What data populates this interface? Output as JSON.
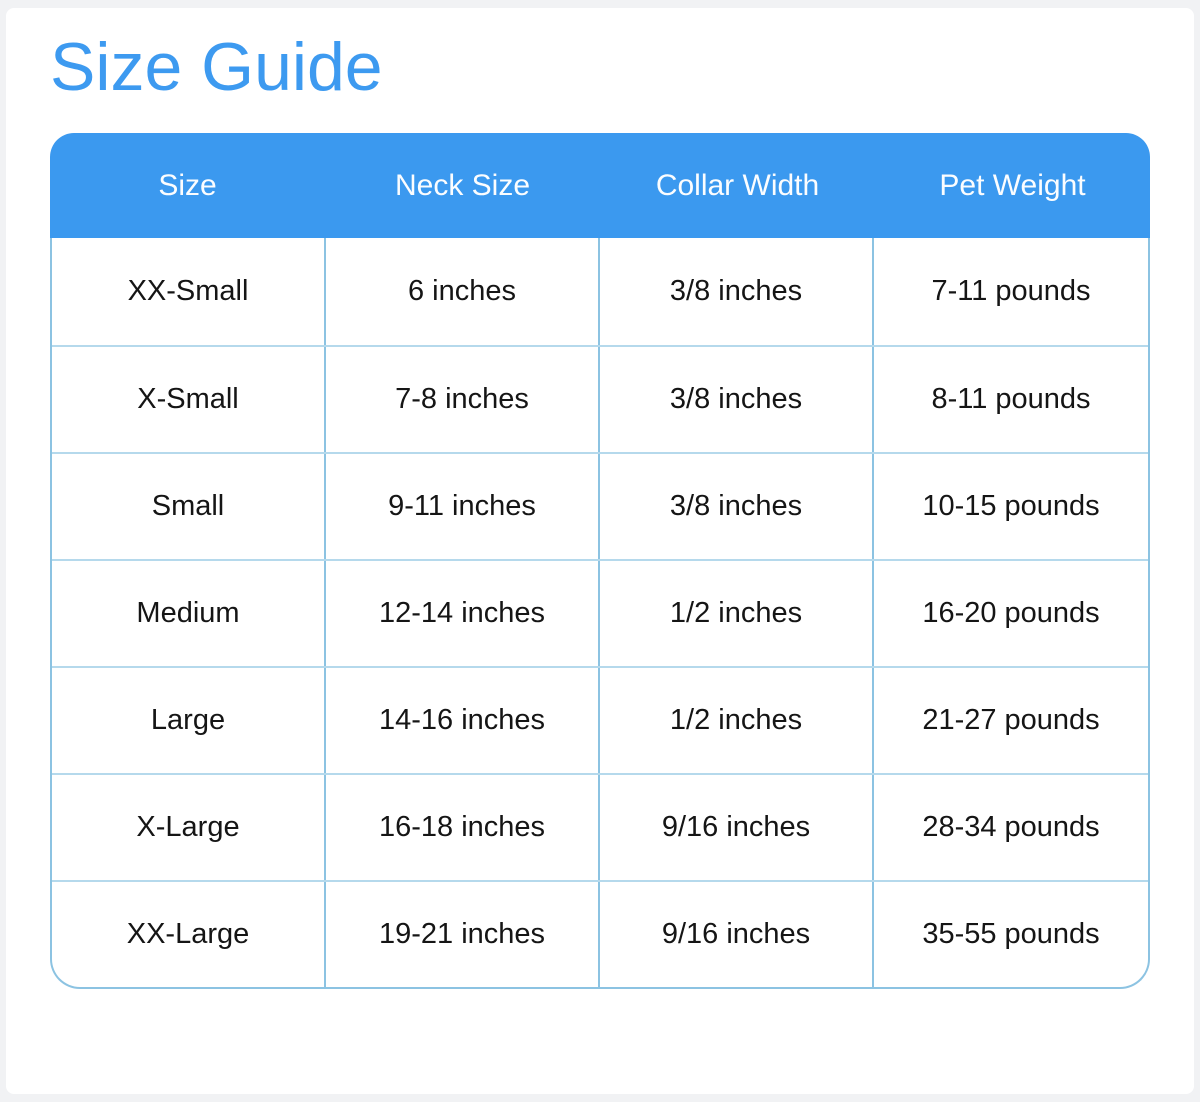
{
  "page": {
    "title": "Size Guide"
  },
  "colors": {
    "title": "#3d9af0",
    "header_bg": "#3b99ef",
    "header_text": "#fbfdff",
    "column_border": "#8cc3e2",
    "row_border": "#b5d9ec",
    "cell_text": "#151515",
    "page_bg": "#f1f2f4",
    "card_bg": "#ffffff"
  },
  "table": {
    "columns": [
      "Size",
      "Neck Size",
      "Collar Width",
      "Pet Weight"
    ],
    "rows": [
      {
        "size": "XX-Small",
        "neck": "6 inches",
        "collar": "3/8 inches",
        "weight": "7-11 pounds"
      },
      {
        "size": "X-Small",
        "neck": "7-8 inches",
        "collar": "3/8 inches",
        "weight": "8-11 pounds"
      },
      {
        "size": "Small",
        "neck": "9-11 inches",
        "collar": "3/8 inches",
        "weight": "10-15 pounds"
      },
      {
        "size": "Medium",
        "neck": "12-14 inches",
        "collar": "1/2 inches",
        "weight": "16-20 pounds"
      },
      {
        "size": "Large",
        "neck": "14-16 inches",
        "collar": "1/2 inches",
        "weight": "21-27 pounds"
      },
      {
        "size": "X-Large",
        "neck": "16-18 inches",
        "collar": "9/16 inches",
        "weight": "28-34 pounds"
      },
      {
        "size": "XX-Large",
        "neck": "19-21 inches",
        "collar": "9/16 inches",
        "weight": "35-55 pounds"
      }
    ]
  }
}
